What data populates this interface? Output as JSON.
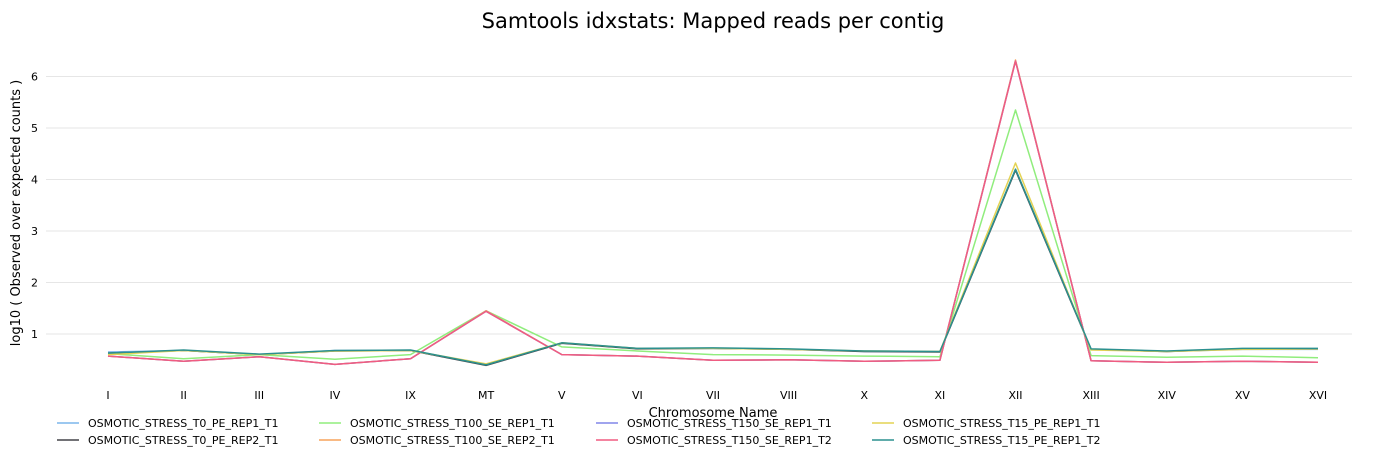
{
  "chart_data": {
    "type": "line",
    "title": "Samtools idxstats: Mapped reads per contig",
    "xlabel": "Chromosome Name",
    "ylabel": "log10 ( Observed over expected counts )",
    "ylim": [
      0.3,
      6.3
    ],
    "yticks": [
      1,
      2,
      3,
      4,
      5,
      6
    ],
    "grid": true,
    "legend_position": "bottom",
    "categories": [
      "I",
      "II",
      "III",
      "IV",
      "IX",
      "MT",
      "V",
      "VI",
      "VII",
      "VIII",
      "X",
      "XI",
      "XII",
      "XIII",
      "XIV",
      "XV",
      "XVI"
    ],
    "series": [
      {
        "name": "OSMOTIC_STRESS_T0_PE_REP1_T1",
        "color": "#7cb5ec",
        "values": [
          0.65,
          0.68,
          0.6,
          0.68,
          0.68,
          0.4,
          0.82,
          0.72,
          0.72,
          0.7,
          0.66,
          0.65,
          4.2,
          0.7,
          0.66,
          0.7,
          0.7
        ]
      },
      {
        "name": "OSMOTIC_STRESS_T0_PE_REP2_T1",
        "color": "#434348",
        "values": [
          0.63,
          0.68,
          0.6,
          0.67,
          0.68,
          0.39,
          0.82,
          0.71,
          0.72,
          0.7,
          0.66,
          0.65,
          4.18,
          0.7,
          0.66,
          0.71,
          0.71
        ]
      },
      {
        "name": "OSMOTIC_STRESS_T100_SE_REP1_T1",
        "color": "#90ed7d",
        "values": [
          0.62,
          0.52,
          0.6,
          0.51,
          0.6,
          1.45,
          0.75,
          0.67,
          0.6,
          0.59,
          0.57,
          0.56,
          5.35,
          0.58,
          0.55,
          0.57,
          0.54
        ]
      },
      {
        "name": "OSMOTIC_STRESS_T100_SE_REP2_T1",
        "color": "#f7a35c",
        "values": [
          0.57,
          0.47,
          0.56,
          0.41,
          0.52,
          1.45,
          0.6,
          0.57,
          0.49,
          0.5,
          0.47,
          0.49,
          6.32,
          0.48,
          0.45,
          0.47,
          0.45
        ]
      },
      {
        "name": "OSMOTIC_STRESS_T150_SE_REP1_T1",
        "color": "#8085e9",
        "values": [
          0.57,
          0.47,
          0.56,
          0.41,
          0.52,
          1.44,
          0.6,
          0.57,
          0.49,
          0.5,
          0.47,
          0.49,
          6.3,
          0.48,
          0.45,
          0.47,
          0.45
        ]
      },
      {
        "name": "OSMOTIC_STRESS_T150_SE_REP1_T2",
        "color": "#f15c80",
        "values": [
          0.57,
          0.47,
          0.56,
          0.41,
          0.52,
          1.44,
          0.6,
          0.57,
          0.49,
          0.5,
          0.47,
          0.49,
          6.3,
          0.48,
          0.45,
          0.47,
          0.45
        ]
      },
      {
        "name": "OSMOTIC_STRESS_T15_PE_REP1_T1",
        "color": "#e4d354",
        "values": [
          0.6,
          0.68,
          0.6,
          0.67,
          0.68,
          0.42,
          0.83,
          0.72,
          0.72,
          0.7,
          0.67,
          0.66,
          4.32,
          0.69,
          0.66,
          0.7,
          0.71
        ]
      },
      {
        "name": "OSMOTIC_STRESS_T15_PE_REP1_T2",
        "color": "#2b908f",
        "values": [
          0.63,
          0.69,
          0.61,
          0.68,
          0.69,
          0.4,
          0.83,
          0.72,
          0.73,
          0.71,
          0.67,
          0.66,
          4.2,
          0.71,
          0.67,
          0.72,
          0.72
        ]
      }
    ]
  }
}
